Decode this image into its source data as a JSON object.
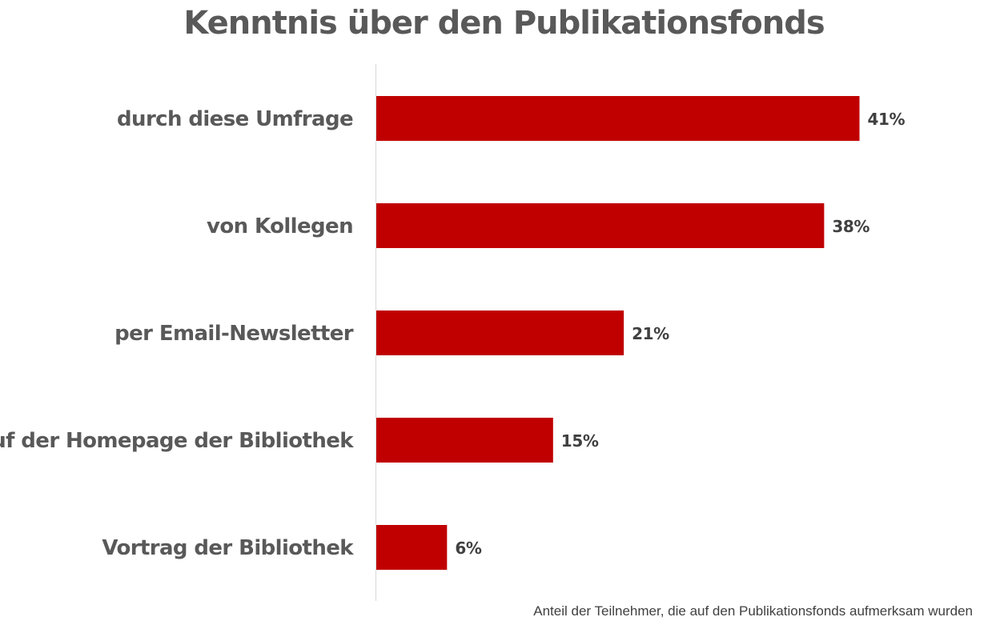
{
  "chart_data": {
    "type": "bar",
    "orientation": "horizontal",
    "title": "Kenntnis über den Publikationsfonds",
    "categories": [
      "durch diese Umfrage",
      "von Kollegen",
      "per Email-Newsletter",
      "auf der Homepage der Bibliothek",
      "Vortrag der Bibliothek"
    ],
    "values": [
      41,
      38,
      21,
      15,
      6
    ],
    "value_labels": [
      "41%",
      "38%",
      "21%",
      "15%",
      "6%"
    ],
    "xlabel": "",
    "ylabel": "",
    "xlim": [
      0,
      50
    ],
    "grid": false,
    "bar_color": "#C00000",
    "note": "Anteil der Teilnehmer, die auf den Publikationsfonds aufmerksam wurden"
  }
}
